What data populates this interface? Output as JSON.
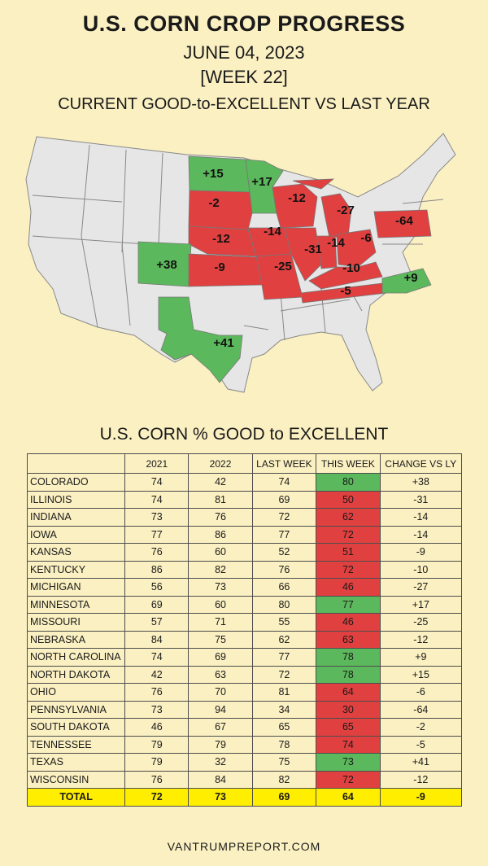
{
  "header": {
    "title": "U.S. CORN CROP PROGRESS",
    "date": "JUNE 04, 2023",
    "week": "[WEEK 22]",
    "compare_label": "CURRENT GOOD-to-EXCELLENT VS LAST YEAR"
  },
  "colors": {
    "improved": "#5cb85c",
    "declined": "#e04040",
    "neutral": "#e6e6e6",
    "total_row": "#ffee00",
    "background": "#fbf0c2"
  },
  "map_labels": [
    {
      "state": "NORTH DAKOTA",
      "text": "+15",
      "status": "improved"
    },
    {
      "state": "MINNESOTA",
      "text": "+17",
      "status": "improved"
    },
    {
      "state": "SOUTH DAKOTA",
      "text": "-2",
      "status": "declined"
    },
    {
      "state": "WISCONSIN",
      "text": "-12",
      "status": "declined"
    },
    {
      "state": "MICHIGAN",
      "text": "-27",
      "status": "declined"
    },
    {
      "state": "PENNSYLVANIA",
      "text": "-64",
      "status": "declined"
    },
    {
      "state": "NEBRASKA",
      "text": "-12",
      "status": "declined"
    },
    {
      "state": "IOWA",
      "text": "-14",
      "status": "declined"
    },
    {
      "state": "COLORADO",
      "text": "+38",
      "status": "improved"
    },
    {
      "state": "KANSAS",
      "text": "-9",
      "status": "declined"
    },
    {
      "state": "MISSOURI",
      "text": "-25",
      "status": "declined"
    },
    {
      "state": "ILLINOIS",
      "text": "-31",
      "status": "declined"
    },
    {
      "state": "INDIANA",
      "text": "-14",
      "status": "declined"
    },
    {
      "state": "OHIO",
      "text": "-6",
      "status": "declined"
    },
    {
      "state": "KENTUCKY",
      "text": "-10",
      "status": "declined"
    },
    {
      "state": "TENNESSEE",
      "text": "-5",
      "status": "declined"
    },
    {
      "state": "NORTH CAROLINA",
      "text": "+9",
      "status": "improved"
    },
    {
      "state": "TEXAS",
      "text": "+41",
      "status": "improved"
    }
  ],
  "chart_data": {
    "type": "table",
    "title": "U.S. CORN % GOOD to EXCELLENT",
    "columns": [
      "",
      "2021",
      "2022",
      "LAST WEEK",
      "THIS WEEK",
      "CHANGE VS LY"
    ],
    "rows": [
      {
        "state": "COLORADO",
        "y2021": "74",
        "y2022": "42",
        "last_week": "74",
        "this_week": "80",
        "change": "+38",
        "status": "improved"
      },
      {
        "state": "ILLINOIS",
        "y2021": "74",
        "y2022": "81",
        "last_week": "69",
        "this_week": "50",
        "change": "-31",
        "status": "declined"
      },
      {
        "state": "INDIANA",
        "y2021": "73",
        "y2022": "76",
        "last_week": "72",
        "this_week": "62",
        "change": "-14",
        "status": "declined"
      },
      {
        "state": "IOWA",
        "y2021": "77",
        "y2022": "86",
        "last_week": "77",
        "this_week": "72",
        "change": "-14",
        "status": "declined"
      },
      {
        "state": "KANSAS",
        "y2021": "76",
        "y2022": "60",
        "last_week": "52",
        "this_week": "51",
        "change": "-9",
        "status": "declined"
      },
      {
        "state": "KENTUCKY",
        "y2021": "86",
        "y2022": "82",
        "last_week": "76",
        "this_week": "72",
        "change": "-10",
        "status": "declined"
      },
      {
        "state": "MICHIGAN",
        "y2021": "56",
        "y2022": "73",
        "last_week": "66",
        "this_week": "46",
        "change": "-27",
        "status": "declined"
      },
      {
        "state": "MINNESOTA",
        "y2021": "69",
        "y2022": "60",
        "last_week": "80",
        "this_week": "77",
        "change": "+17",
        "status": "improved"
      },
      {
        "state": "MISSOURI",
        "y2021": "57",
        "y2022": "71",
        "last_week": "55",
        "this_week": "46",
        "change": "-25",
        "status": "declined"
      },
      {
        "state": "NEBRASKA",
        "y2021": "84",
        "y2022": "75",
        "last_week": "62",
        "this_week": "63",
        "change": "-12",
        "status": "declined"
      },
      {
        "state": "NORTH CAROLINA",
        "y2021": "74",
        "y2022": "69",
        "last_week": "77",
        "this_week": "78",
        "change": "+9",
        "status": "improved"
      },
      {
        "state": "NORTH DAKOTA",
        "y2021": "42",
        "y2022": "63",
        "last_week": "72",
        "this_week": "78",
        "change": "+15",
        "status": "improved"
      },
      {
        "state": "OHIO",
        "y2021": "76",
        "y2022": "70",
        "last_week": "81",
        "this_week": "64",
        "change": "-6",
        "status": "declined"
      },
      {
        "state": "PENNSYLVANIA",
        "y2021": "73",
        "y2022": "94",
        "last_week": "34",
        "this_week": "30",
        "change": "-64",
        "status": "declined"
      },
      {
        "state": "SOUTH DAKOTA",
        "y2021": "46",
        "y2022": "67",
        "last_week": "65",
        "this_week": "65",
        "change": "-2",
        "status": "declined"
      },
      {
        "state": "TENNESSEE",
        "y2021": "79",
        "y2022": "79",
        "last_week": "78",
        "this_week": "74",
        "change": "-5",
        "status": "declined"
      },
      {
        "state": "TEXAS",
        "y2021": "79",
        "y2022": "32",
        "last_week": "75",
        "this_week": "73",
        "change": "+41",
        "status": "improved"
      },
      {
        "state": "WISCONSIN",
        "y2021": "76",
        "y2022": "84",
        "last_week": "82",
        "this_week": "72",
        "change": "-12",
        "status": "declined"
      }
    ],
    "total": {
      "state": "TOTAL",
      "y2021": "72",
      "y2022": "73",
      "last_week": "69",
      "this_week": "64",
      "change": "-9"
    }
  },
  "footer": "VANTRUMPREPORT.COM"
}
